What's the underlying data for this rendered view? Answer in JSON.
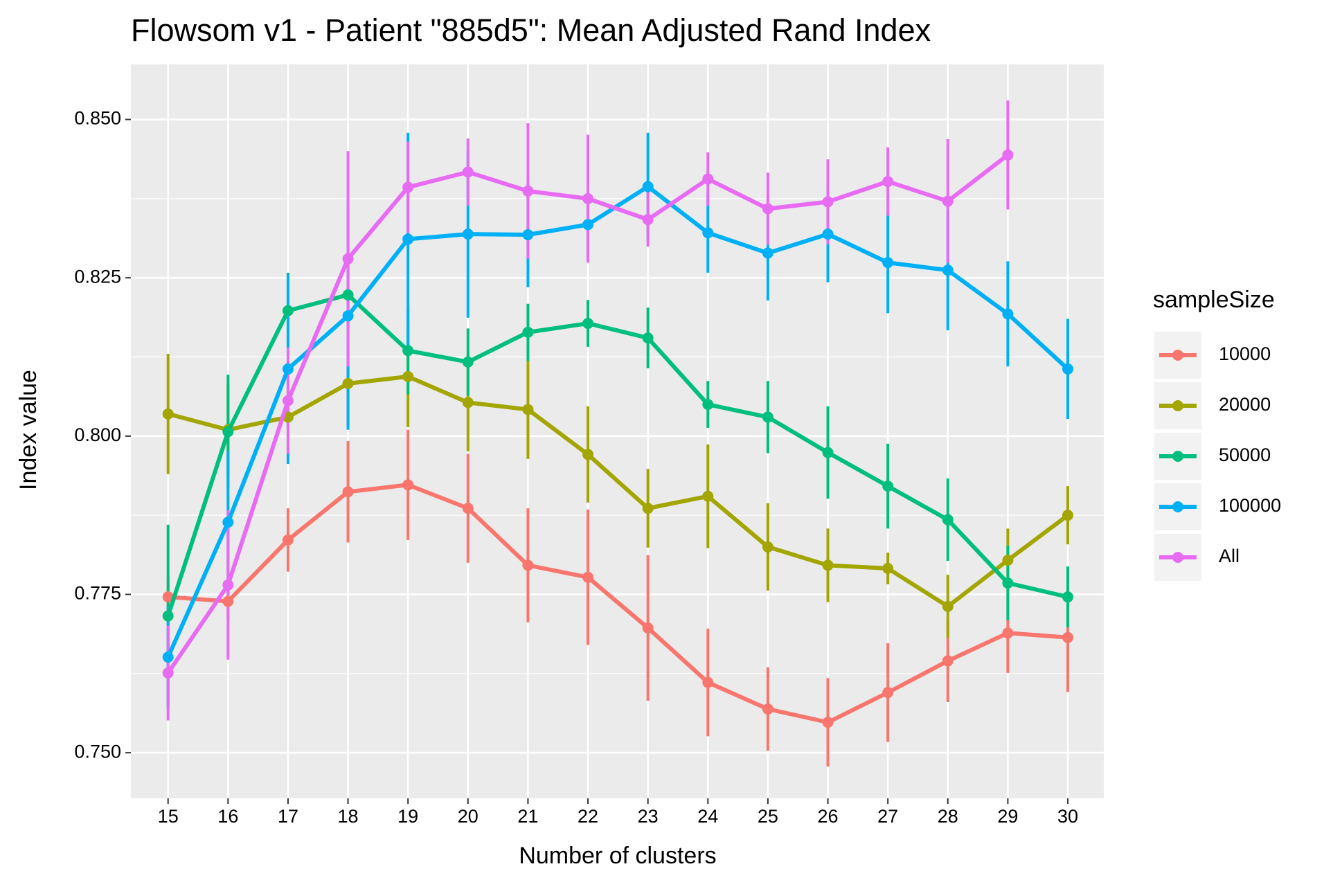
{
  "chart_data": {
    "type": "line",
    "title": "Flowsom v1 - Patient \"885d5\": Mean Adjusted Rand Index",
    "x_label": "Number of clusters",
    "y_label": "Index value",
    "legend_title": "sampleSize",
    "x": [
      15,
      16,
      17,
      18,
      19,
      20,
      21,
      22,
      23,
      24,
      25,
      26,
      27,
      28,
      29,
      30
    ],
    "xlim": [
      14.38,
      30.6
    ],
    "xticks": [
      15,
      16,
      17,
      18,
      19,
      20,
      21,
      22,
      23,
      24,
      25,
      26,
      27,
      28,
      29,
      30
    ],
    "ylim": [
      0.7428,
      0.8587
    ],
    "yticks": [
      {
        "value": 0.75,
        "label": "0.750"
      },
      {
        "value": 0.775,
        "label": "0.775"
      },
      {
        "value": 0.8,
        "label": "0.800"
      },
      {
        "value": 0.825,
        "label": "0.825"
      },
      {
        "value": 0.85,
        "label": "0.850"
      }
    ],
    "grid": true,
    "legend_position": "right",
    "series": [
      {
        "name": "10000",
        "color": "#F8766D",
        "values": [
          0.7746,
          0.7739,
          0.7836,
          0.7912,
          0.7923,
          0.7886,
          0.7796,
          0.7777,
          0.7697,
          0.7611,
          0.7569,
          0.7548,
          0.7595,
          0.7645,
          0.7689,
          0.7682
        ],
        "errors": [
          0.003,
          0.003,
          0.005,
          0.008,
          0.0087,
          0.0086,
          0.009,
          0.0107,
          0.0115,
          0.0085,
          0.0066,
          0.007,
          0.0078,
          0.0065,
          0.0063,
          0.0086
        ]
      },
      {
        "name": "20000",
        "color": "#A3A500",
        "values": [
          0.8035,
          0.801,
          0.803,
          0.8083,
          0.8094,
          0.8053,
          0.8042,
          0.7971,
          0.7886,
          0.7905,
          0.7825,
          0.7796,
          0.7791,
          0.7731,
          0.7804,
          0.7875
        ],
        "errors": [
          0.0095,
          0.0072,
          0.006,
          0.0067,
          0.008,
          0.0077,
          0.0078,
          0.0076,
          0.0062,
          0.0082,
          0.0069,
          0.0058,
          0.0025,
          0.005,
          0.005,
          0.0046
        ]
      },
      {
        "name": "50000",
        "color": "#00BF7D",
        "values": [
          0.7716,
          0.8007,
          0.8198,
          0.8223,
          0.8135,
          0.8117,
          0.8164,
          0.8178,
          0.8155,
          0.805,
          0.803,
          0.7974,
          0.7921,
          0.7868,
          0.7768,
          0.7746
        ],
        "errors": [
          0.0144,
          0.009,
          0.006,
          0.0056,
          0.0069,
          0.0053,
          0.0045,
          0.0037,
          0.0048,
          0.0037,
          0.0057,
          0.0073,
          0.0067,
          0.0065,
          0.0059,
          0.0048
        ]
      },
      {
        "name": "100000",
        "color": "#00B0F6",
        "values": [
          0.7651,
          0.7864,
          0.8106,
          0.819,
          0.8311,
          0.8319,
          0.8318,
          0.8334,
          0.8394,
          0.8321,
          0.8289,
          0.8319,
          0.8274,
          0.8262,
          0.8193,
          0.8106
        ],
        "errors": [
          0.008,
          0.0112,
          0.015,
          0.018,
          0.0168,
          0.0132,
          0.0083,
          0.006,
          0.0085,
          0.0063,
          0.0075,
          0.0076,
          0.008,
          0.0095,
          0.0083,
          0.0079
        ]
      },
      {
        "name": "All",
        "color": "#E76BF3",
        "values": [
          0.7626,
          0.7765,
          0.8056,
          0.828,
          0.8393,
          0.8417,
          0.8387,
          0.8375,
          0.8342,
          0.8406,
          0.8359,
          0.837,
          0.8402,
          0.8371,
          0.8444,
          null
        ],
        "errors": [
          0.0075,
          0.0118,
          0.0084,
          0.017,
          0.0072,
          0.0053,
          0.0107,
          0.0101,
          0.0043,
          0.0042,
          0.0057,
          0.0067,
          0.0054,
          0.0098,
          0.0086,
          null
        ]
      }
    ]
  }
}
